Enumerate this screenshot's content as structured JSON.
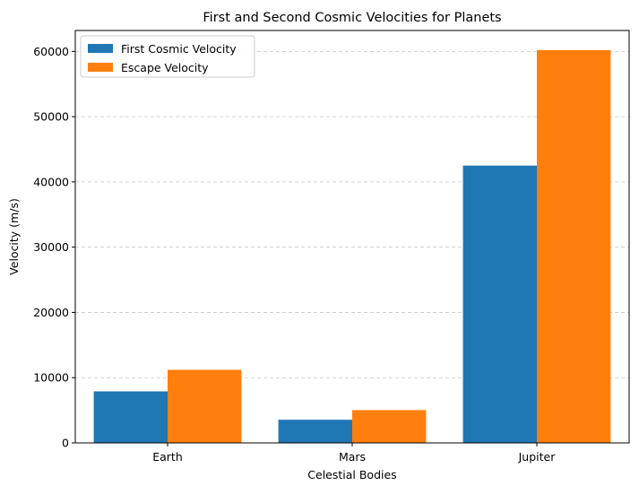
{
  "chart_data": {
    "type": "bar",
    "title": "First and Second Cosmic Velocities for Planets",
    "xlabel": "Celestial Bodies",
    "ylabel": "Velocity (m/s)",
    "categories": [
      "Earth",
      "Mars",
      "Jupiter"
    ],
    "series": [
      {
        "name": "First Cosmic Velocity",
        "color": "#1f77b4",
        "values": [
          7900,
          3550,
          42500
        ]
      },
      {
        "name": "Escape Velocity",
        "color": "#ff7f0e",
        "values": [
          11200,
          5030,
          60200
        ]
      }
    ],
    "ylim": [
      0,
      63210
    ],
    "yticks": [
      0,
      10000,
      20000,
      30000,
      40000,
      50000,
      60000
    ],
    "ytick_labels": [
      "0",
      "10000",
      "20000",
      "30000",
      "40000",
      "50000",
      "60000"
    ],
    "grid": {
      "axis": "y",
      "style": "dashed",
      "color": "#c8c8c8"
    },
    "legend": {
      "placement": "top-left"
    }
  }
}
